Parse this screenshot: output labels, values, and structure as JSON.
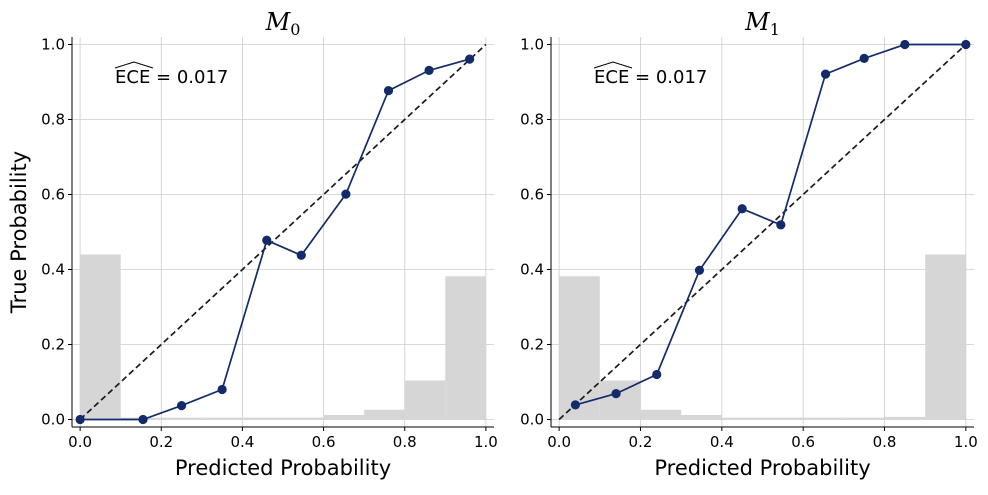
{
  "figure": {
    "ylabel": "True Probability"
  },
  "colors": {
    "curve": "#132a6b",
    "diagonal": "#1a1a1a",
    "histogram": "#d6d6d6",
    "grid": "#cccccc"
  },
  "chart_data": [
    {
      "type": "line",
      "title_main": "M",
      "title_sub": "0",
      "xlabel": "Predicted Probability",
      "ylabel": "True Probability",
      "annotation_ece": "ECE",
      "annotation_value": " = 0.017",
      "xlim": [
        -0.02,
        1.02
      ],
      "ylim": [
        -0.02,
        1.02
      ],
      "xticks": [
        "0.0",
        "0.2",
        "0.4",
        "0.6",
        "0.8",
        "1.0"
      ],
      "yticks": [
        "0.0",
        "0.2",
        "0.4",
        "0.6",
        "0.8",
        "1.0"
      ],
      "grid": true,
      "series": [
        {
          "x": [
            0.0,
            0.155,
            0.25,
            0.35,
            0.46,
            0.545,
            0.655,
            0.76,
            0.86,
            0.96
          ],
          "y": [
            0.0,
            0.0,
            0.037,
            0.08,
            0.478,
            0.438,
            0.601,
            0.877,
            0.931,
            0.961
          ]
        }
      ],
      "diagonal": [
        [
          0,
          0
        ],
        [
          1,
          1
        ]
      ],
      "histogram": {
        "bin_edges": [
          0.0,
          0.1,
          0.2,
          0.3,
          0.4,
          0.5,
          0.6,
          0.7,
          0.8,
          0.9,
          1.0
        ],
        "heights": [
          0.44,
          0.005,
          0.005,
          0.005,
          0.005,
          0.005,
          0.012,
          0.026,
          0.104,
          0.382
        ]
      }
    },
    {
      "type": "line",
      "title_main": "M",
      "title_sub": "1",
      "xlabel": "Predicted Probability",
      "ylabel": "",
      "annotation_ece": "ECE",
      "annotation_value": " = 0.017",
      "xlim": [
        -0.02,
        1.02
      ],
      "ylim": [
        -0.02,
        1.02
      ],
      "xticks": [
        "0.0",
        "0.2",
        "0.4",
        "0.6",
        "0.8",
        "1.0"
      ],
      "yticks": [
        "0.0",
        "0.2",
        "0.4",
        "0.6",
        "0.8",
        "1.0"
      ],
      "grid": true,
      "series": [
        {
          "x": [
            0.04,
            0.14,
            0.24,
            0.345,
            0.45,
            0.545,
            0.655,
            0.75,
            0.85,
            1.0
          ],
          "y": [
            0.039,
            0.069,
            0.12,
            0.398,
            0.562,
            0.519,
            0.921,
            0.963,
            1.0,
            1.0
          ]
        }
      ],
      "diagonal": [
        [
          0,
          0
        ],
        [
          1,
          1
        ]
      ],
      "histogram": {
        "bin_edges": [
          0.0,
          0.1,
          0.2,
          0.3,
          0.4,
          0.5,
          0.6,
          0.7,
          0.8,
          0.9,
          1.0
        ],
        "heights": [
          0.382,
          0.104,
          0.026,
          0.012,
          0.005,
          0.005,
          0.005,
          0.005,
          0.007,
          0.44
        ]
      }
    }
  ]
}
